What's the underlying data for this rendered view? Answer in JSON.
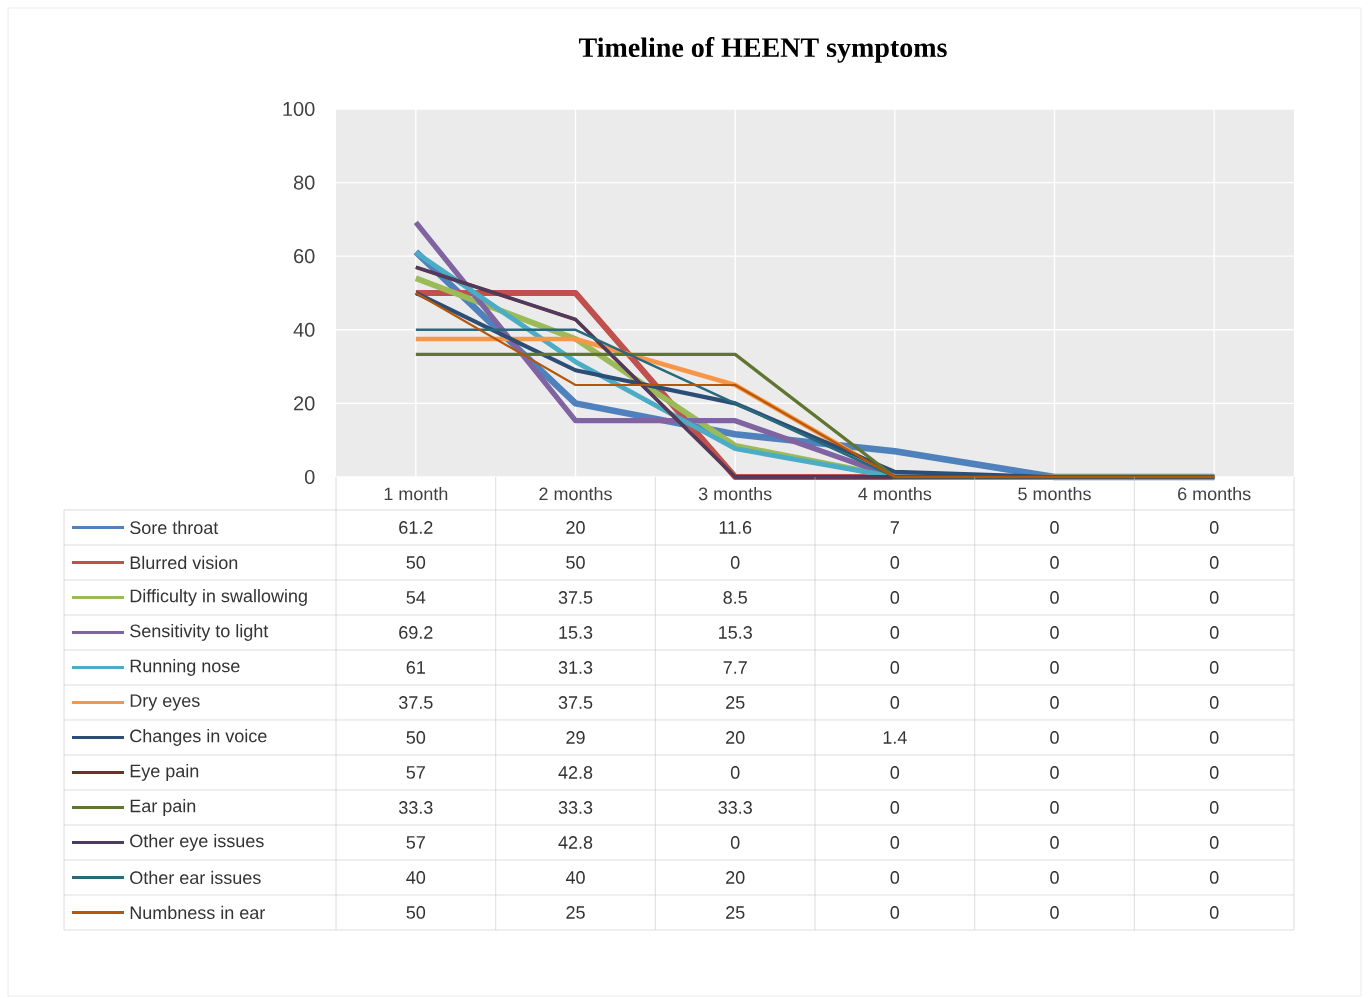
{
  "chart_data": {
    "type": "line",
    "title": "Timeline of HEENT symptoms",
    "categories": [
      "1 month",
      "2 months",
      "3 months",
      "4 months",
      "5 months",
      "6 months"
    ],
    "series": [
      {
        "name": "Sore throat",
        "color": "#4f81bd",
        "values": [
          61.2,
          20,
          11.6,
          7,
          0,
          0
        ],
        "value_labels": [
          "61.2",
          "20",
          "11.6",
          "7",
          "0",
          "0"
        ]
      },
      {
        "name": "Blurred vision",
        "color": "#c0504d",
        "values": [
          50,
          50,
          0,
          0,
          0,
          0
        ],
        "value_labels": [
          "50",
          "50",
          "0",
          "0",
          "0",
          "0"
        ]
      },
      {
        "name": "Difficulty in swallowing",
        "color": "#9bbb59",
        "values": [
          54,
          37.5,
          8.5,
          0,
          0,
          0
        ],
        "value_labels": [
          "54",
          "37.5",
          "8.5",
          "0",
          "0",
          "0"
        ]
      },
      {
        "name": "Sensitivity to light",
        "color": "#8064a2",
        "values": [
          69.2,
          15.3,
          15.3,
          0,
          0,
          0
        ],
        "value_labels": [
          "69.2",
          "15.3",
          "15.3",
          "0",
          "0",
          "0"
        ]
      },
      {
        "name": "Running nose",
        "color": "#4bacc6",
        "values": [
          61,
          31.3,
          7.7,
          0,
          0,
          0
        ],
        "value_labels": [
          "61",
          "31.3",
          "7.7",
          "0",
          "0",
          "0"
        ]
      },
      {
        "name": "Dry eyes",
        "color": "#f79646",
        "values": [
          37.5,
          37.5,
          25,
          0,
          0,
          0
        ],
        "value_labels": [
          "37.5",
          "37.5",
          "25",
          "0",
          "0",
          "0"
        ]
      },
      {
        "name": "Changes in voice",
        "color": "#2c4d75",
        "values": [
          50,
          29,
          20,
          1.4,
          0,
          0
        ],
        "value_labels": [
          "50",
          "29",
          "20",
          "1.4",
          "0",
          "0"
        ]
      },
      {
        "name": "Eye pain",
        "color": "#772c2a",
        "values": [
          57,
          42.8,
          0,
          0,
          0,
          0
        ],
        "value_labels": [
          "57",
          "42.8",
          "0",
          "0",
          "0",
          "0"
        ]
      },
      {
        "name": "Ear pain",
        "color": "#5f7530",
        "values": [
          33.3,
          33.3,
          33.3,
          0,
          0,
          0
        ],
        "value_labels": [
          "33.3",
          "33.3",
          "33.3",
          "0",
          "0",
          "0"
        ]
      },
      {
        "name": "Other eye issues",
        "color": "#4d3b62",
        "values": [
          57,
          42.8,
          0,
          0,
          0,
          0
        ],
        "value_labels": [
          "57",
          "42.8",
          "0",
          "0",
          "0",
          "0"
        ]
      },
      {
        "name": "Other ear issues",
        "color": "#276a7c",
        "values": [
          40,
          40,
          20,
          0,
          0,
          0
        ],
        "value_labels": [
          "40",
          "40",
          "20",
          "0",
          "0",
          "0"
        ]
      },
      {
        "name": "Numbness in ear",
        "color": "#b65708",
        "values": [
          50,
          25,
          25,
          0,
          0,
          0
        ],
        "value_labels": [
          "50",
          "25",
          "25",
          "0",
          "0",
          "0"
        ]
      }
    ],
    "ylim": [
      0,
      100
    ],
    "yticks": [
      0,
      20,
      40,
      60,
      80,
      100
    ],
    "grid": true,
    "legend": "bottom",
    "marker": "none",
    "line_style": "solid"
  }
}
